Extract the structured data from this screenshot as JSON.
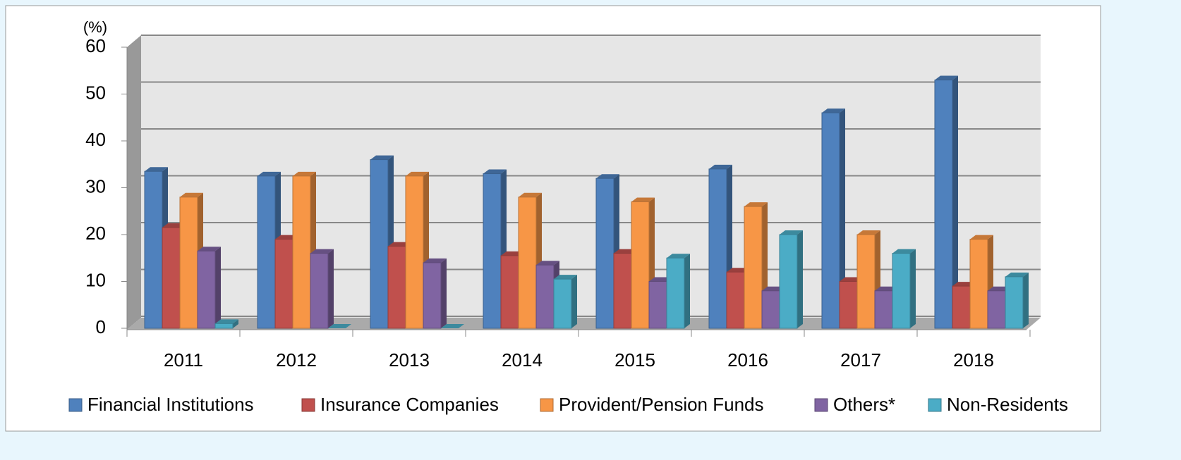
{
  "chart_data": {
    "type": "bar3d",
    "y_unit_label": "(%)",
    "categories": [
      "2011",
      "2012",
      "2013",
      "2014",
      "2015",
      "2016",
      "2017",
      "2018"
    ],
    "series": [
      {
        "name": "Financial Institutions",
        "color": "#4f81bd",
        "values": [
          33.5,
          32.5,
          36,
          33,
          32,
          34,
          46,
          53
        ]
      },
      {
        "name": "Insurance Companies",
        "color": "#c0504d",
        "values": [
          21.5,
          19,
          17.5,
          15.5,
          16,
          12,
          10,
          9
        ]
      },
      {
        "name": "Provident/Pension Funds",
        "color": "#f79646",
        "values": [
          28,
          32.5,
          32.5,
          28,
          27,
          26,
          20,
          19
        ]
      },
      {
        "name": "Others*",
        "color": "#8064a2",
        "values": [
          16.5,
          16,
          14,
          13.5,
          10,
          8,
          8,
          8
        ]
      },
      {
        "name": "Non-Residents",
        "color": "#4bacc6",
        "values": [
          1,
          0,
          0,
          10.5,
          15,
          20,
          16,
          11
        ]
      }
    ],
    "ylim": [
      0,
      60
    ],
    "yticks": [
      0,
      10,
      20,
      30,
      40,
      50,
      60
    ],
    "grid": true,
    "legend": "bottom"
  }
}
